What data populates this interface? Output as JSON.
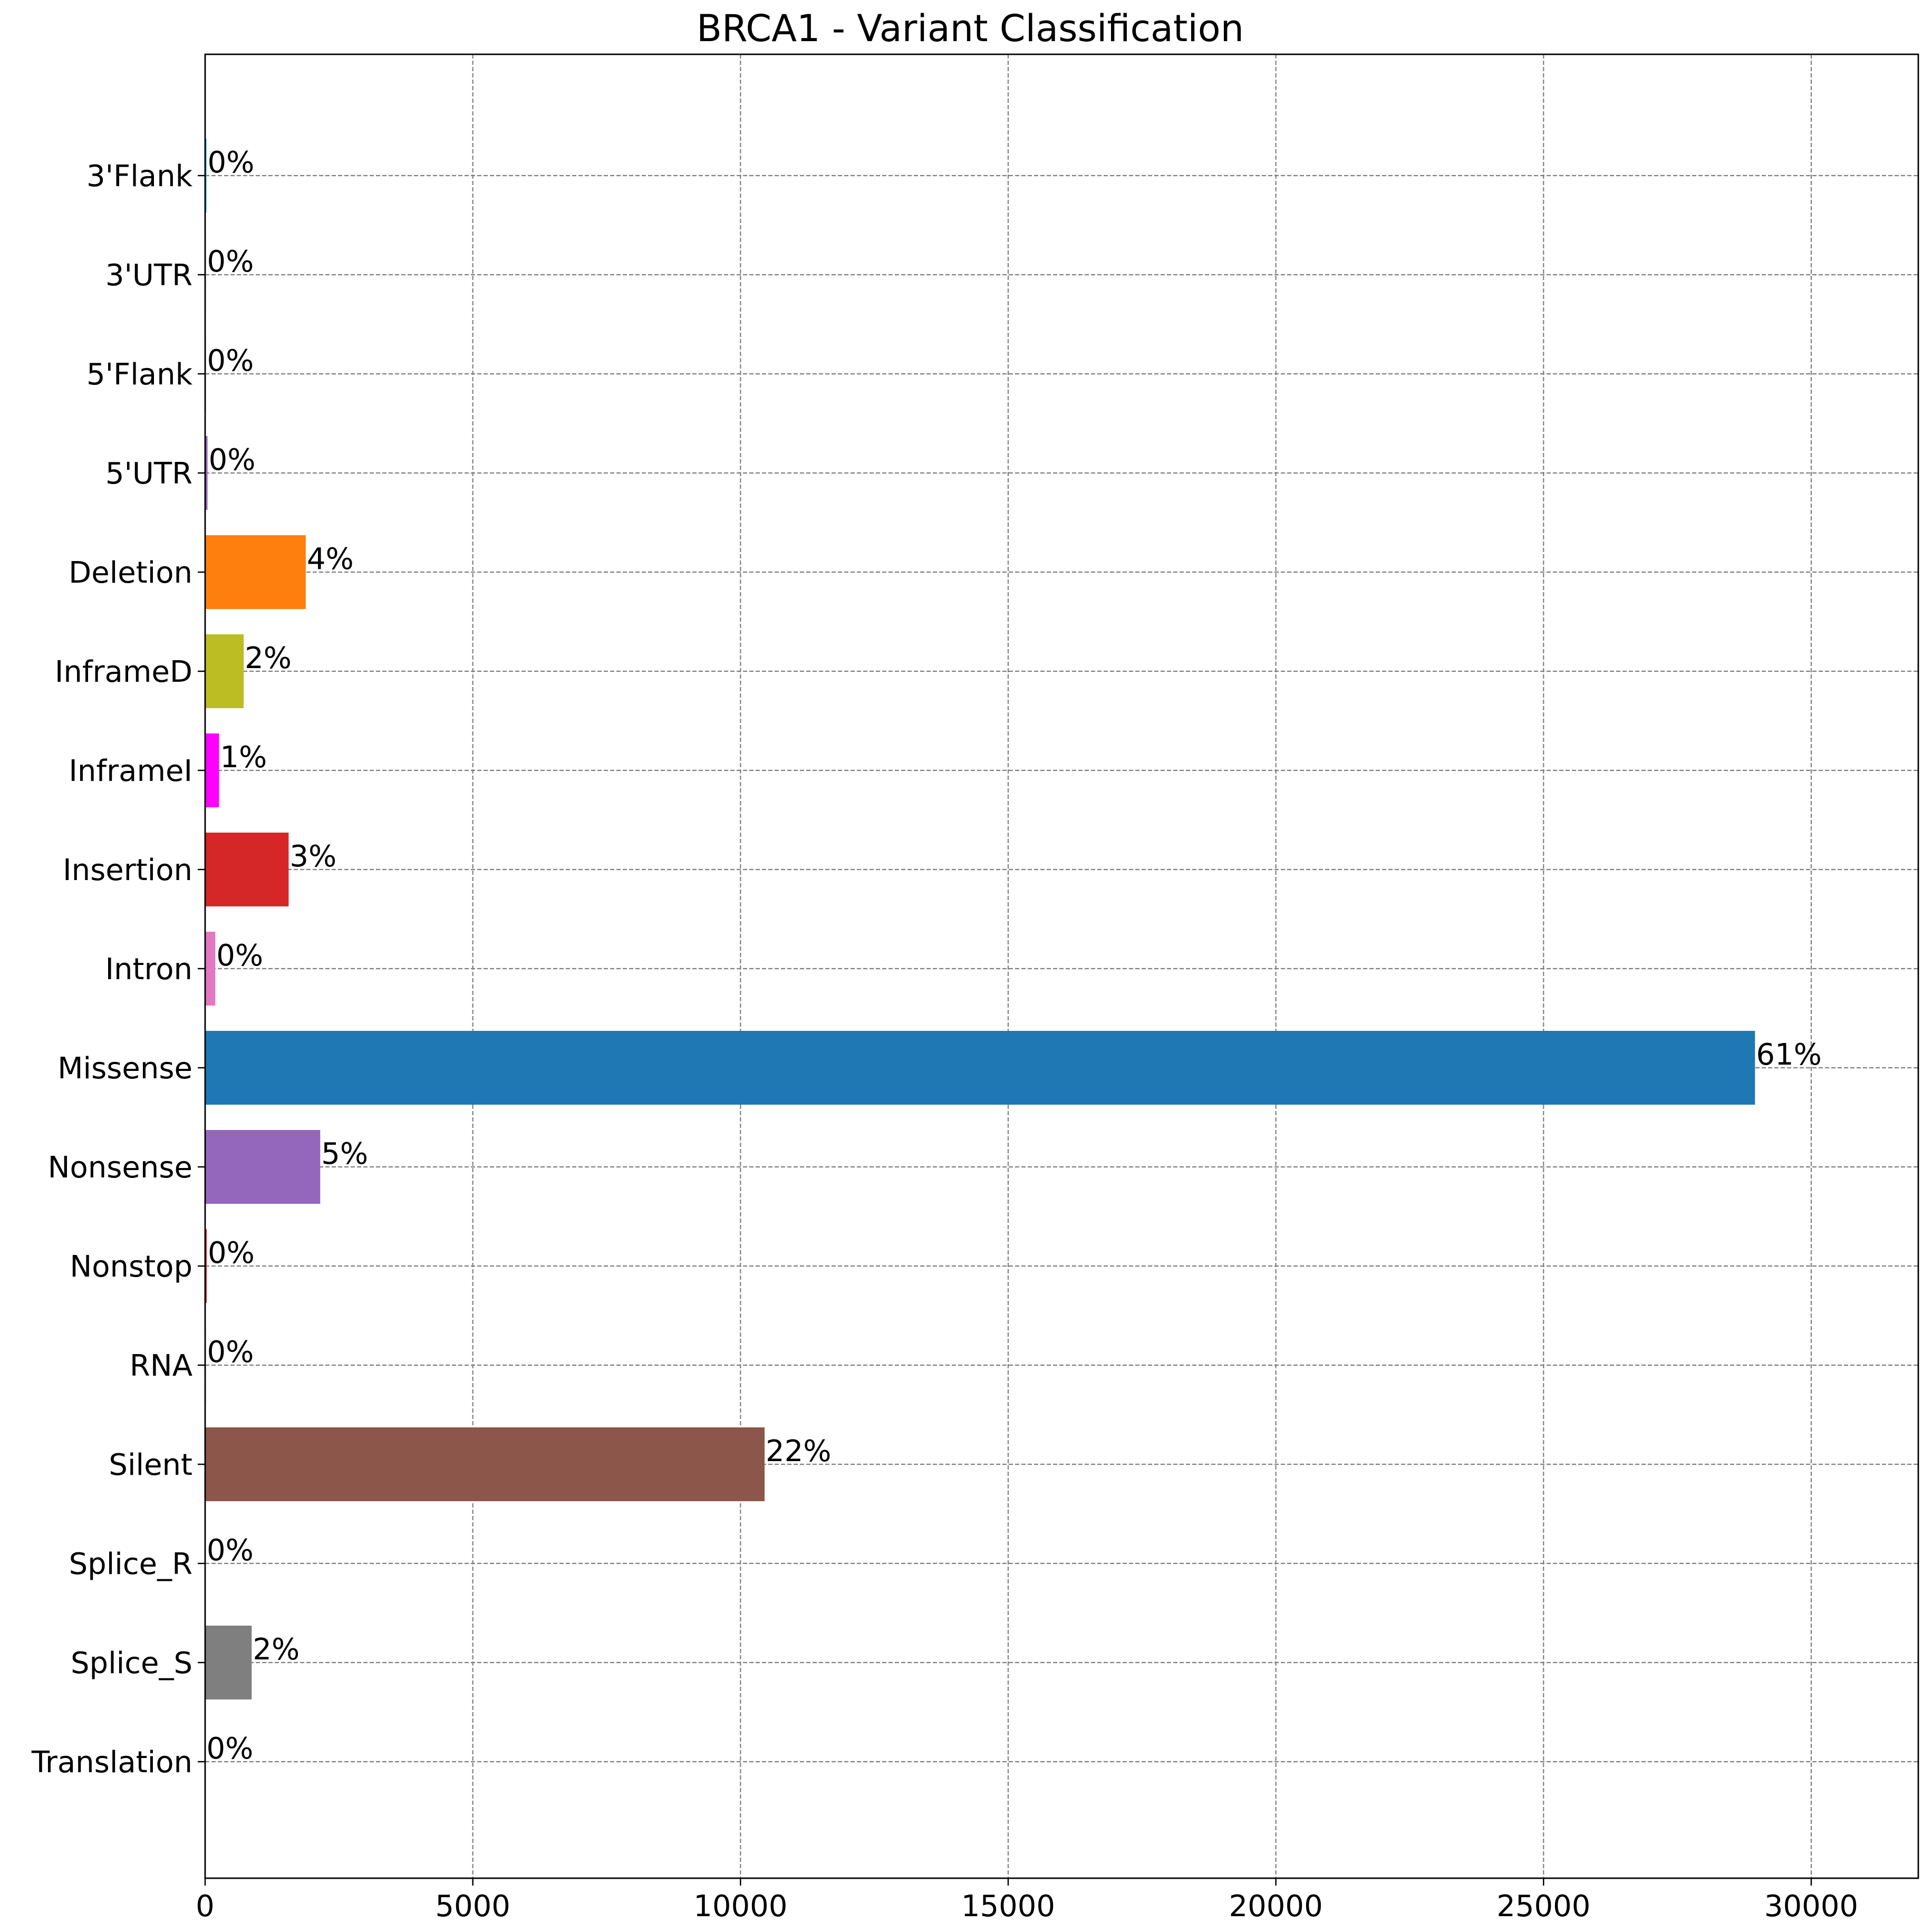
{
  "chart_data": {
    "type": "bar",
    "orientation": "horizontal",
    "title": "BRCA1 - Variant Classification",
    "xlabel": "",
    "ylabel": "",
    "xlim": [
      0,
      32000
    ],
    "xticks": [
      0,
      5000,
      10000,
      15000,
      20000,
      25000,
      30000
    ],
    "grid": true,
    "categories": [
      "3'Flank",
      "3'UTR",
      "5'Flank",
      "5'UTR",
      "Deletion",
      "InframeD",
      "InframeI",
      "Insertion",
      "Intron",
      "Missense",
      "Nonsense",
      "Nonstop",
      "RNA",
      "Silent",
      "Splice_R",
      "Splice_S",
      "Translation"
    ],
    "values": [
      25,
      15,
      15,
      45,
      1880,
      720,
      260,
      1560,
      190,
      28950,
      2150,
      30,
      15,
      10450,
      10,
      870,
      5
    ],
    "labels": [
      "0%",
      "0%",
      "0%",
      "0%",
      "4%",
      "2%",
      "1%",
      "3%",
      "0%",
      "61%",
      "5%",
      "0%",
      "0%",
      "22%",
      "0%",
      "2%",
      "0%"
    ],
    "colors": [
      "#17becf",
      "#bcbd22",
      "#d62728",
      "#9467bd",
      "#ff7f0e",
      "#bcbd22",
      "#ff00ff",
      "#d62728",
      "#e377c2",
      "#1f77b4",
      "#9467bd",
      "#d62728",
      "#2ca02c",
      "#8c564b",
      "#17becf",
      "#7f7f7f",
      "#2ca02c"
    ]
  }
}
